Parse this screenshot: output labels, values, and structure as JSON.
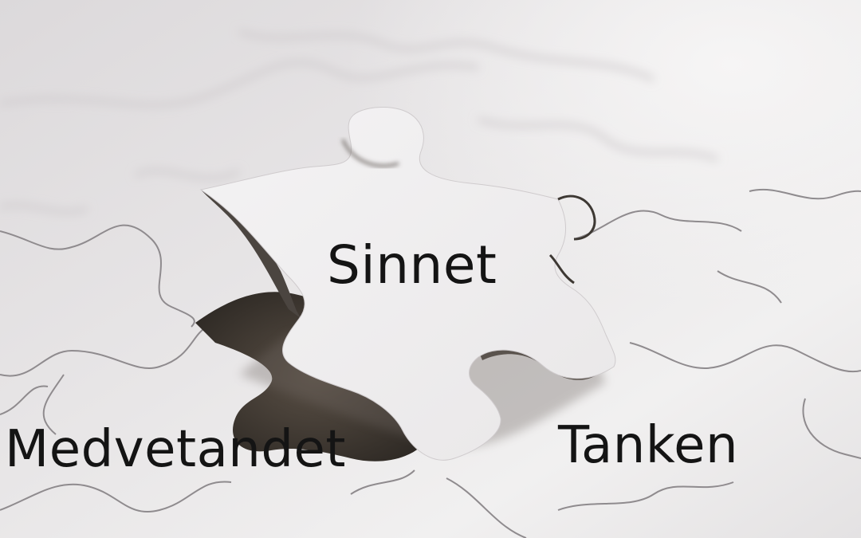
{
  "labels": {
    "sinnet": "Sinnet",
    "medvetandet": "Medvetandet",
    "tanken": "Tanken"
  },
  "colors": {
    "background": "#e9e7e8",
    "piece_surface": "#f3f2f3",
    "seam_line": "#8f8b8e",
    "hole_shadow": "#3e3830",
    "text": "#141414"
  }
}
